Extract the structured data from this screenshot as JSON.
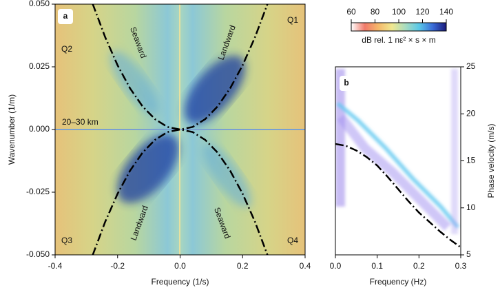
{
  "chart_data": [
    {
      "type": "heatmap",
      "xlabel": "Frequency (1/s)",
      "ylabel": "Wavenumber (1/m)",
      "xlim": [
        -0.4,
        0.4
      ],
      "xticks": [
        -0.4,
        -0.2,
        {
          "value": 0,
          "label": "0.0"
        },
        0.2,
        0.4
      ],
      "ylim": [
        -0.05,
        0.05
      ],
      "yticks": [
        {
          "value": -0.05,
          "label": "-0.050"
        },
        {
          "value": -0.025,
          "label": "-0.025"
        },
        {
          "value": 0,
          "label": "0.000"
        },
        {
          "value": 0.025,
          "label": "0.025"
        },
        {
          "value": 0.05,
          "label": "0.050"
        }
      ],
      "annotations": [
        "a",
        "Seaward",
        "Landward",
        "Landward",
        "Seaward",
        "Q1",
        "Q2",
        "Q3",
        "Q4",
        "20–30 km"
      ],
      "series": [
        {
          "color": "#000000",
          "x": [
            -0.28,
            -0.24,
            -0.2,
            -0.16,
            -0.12,
            -0.08,
            -0.04,
            0,
            0.04,
            0.08,
            0.12,
            0.16,
            0.2,
            0.24,
            0.28
          ],
          "values": [
            0.0502,
            0.0369,
            0.0256,
            0.0164,
            0.0092,
            0.0041,
            0.001,
            0,
            0.001,
            0.0041,
            0.0092,
            0.0164,
            0.0256,
            0.0369,
            0.0502
          ]
        },
        {
          "color": "#000000",
          "x": [
            -0.28,
            -0.24,
            -0.2,
            -0.16,
            -0.12,
            -0.08,
            -0.04,
            0,
            0.04,
            0.08,
            0.12,
            0.16,
            0.2,
            0.24,
            0.28
          ],
          "values": [
            -0.0502,
            -0.0369,
            -0.0256,
            -0.0164,
            -0.0092,
            -0.0041,
            -0.001,
            0,
            -0.001,
            -0.0041,
            -0.0092,
            -0.0164,
            -0.0256,
            -0.0369,
            -0.0502
          ]
        }
      ],
      "colorbar": {
        "label": "dB rel. 1 nε² × s × m",
        "lim": [
          60,
          140
        ],
        "ticks": [
          60,
          80,
          100,
          120,
          140
        ],
        "colors": [
          "#ffffff",
          "#f07a6a",
          "#f5b86a",
          "#f0e890",
          "#a8dcc0",
          "#5ac8e8",
          "#3a6cd8",
          "#1a1a7a"
        ]
      }
    },
    {
      "type": "line",
      "annotations": [
        "b"
      ],
      "xlabel": "Frequency (Hz)",
      "y2label": "Phase velocity (m/s)",
      "xlim": [
        0,
        0.3
      ],
      "xticks": [
        {
          "value": 0,
          "label": "0.0"
        },
        0.1,
        0.2,
        0.3
      ],
      "y2lim": [
        5,
        25
      ],
      "y2ticks": [
        5,
        10,
        15,
        20,
        25
      ],
      "series": [
        {
          "color": "#000000",
          "axis": "y2",
          "x": [
            0,
            0.025,
            0.05,
            0.075,
            0.1,
            0.125,
            0.15,
            0.175,
            0.2,
            0.225,
            0.25,
            0.275,
            0.3
          ],
          "values": [
            16.8,
            16.6,
            16.1,
            15.4,
            14.5,
            13.3,
            12.0,
            10.7,
            9.5,
            8.5,
            7.5,
            6.6,
            5.8
          ]
        }
      ]
    }
  ]
}
